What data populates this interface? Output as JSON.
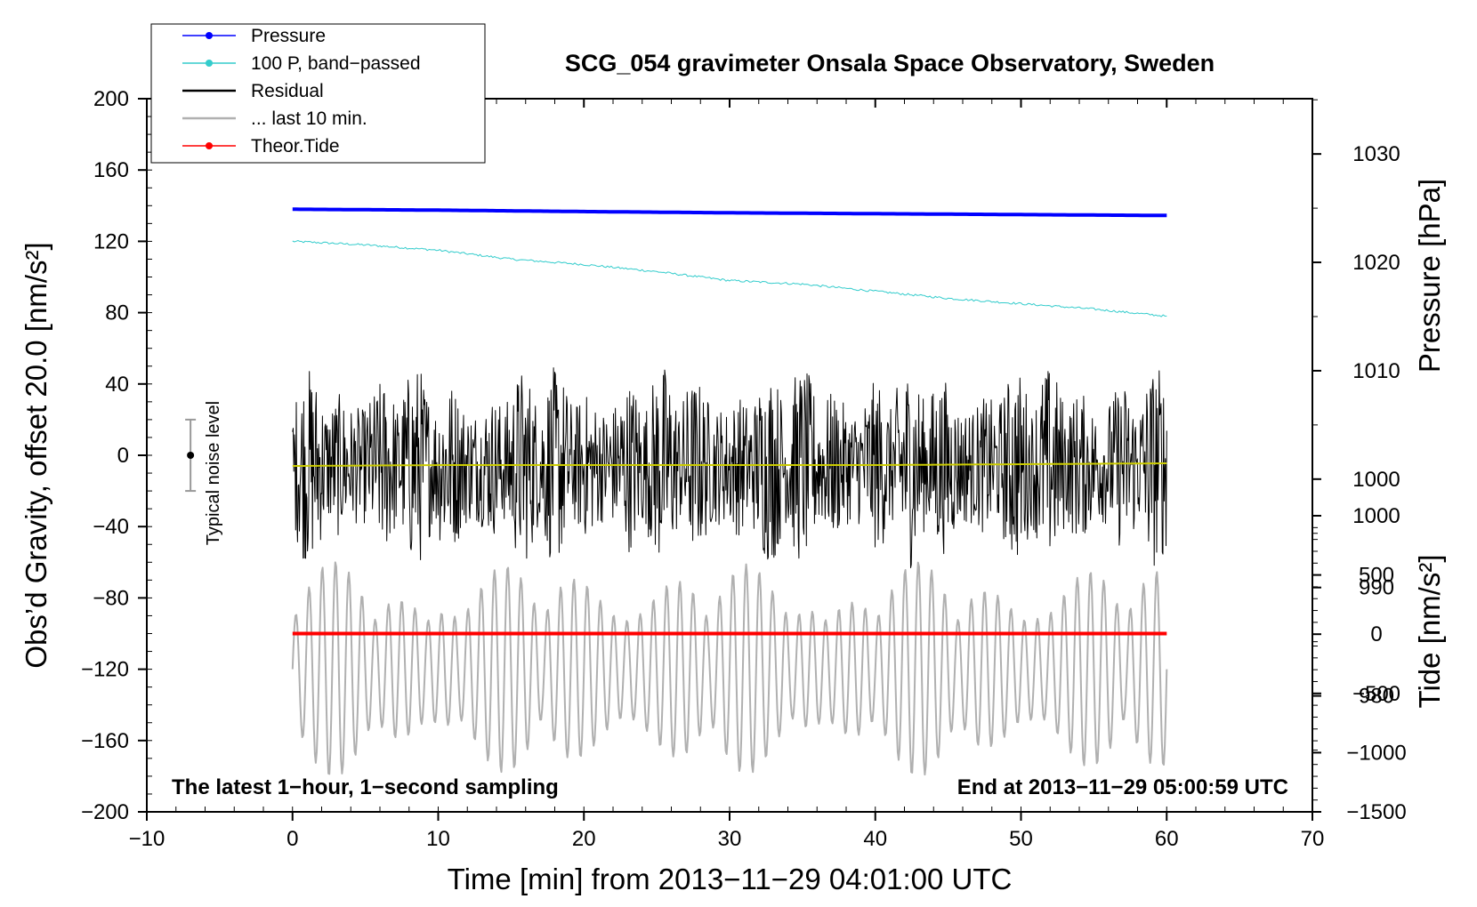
{
  "chart_data": {
    "type": "line",
    "title": "SCG_054 gravimeter Onsala Space Observatory, Sweden",
    "xlabel": "Time [min] from 2013−11−29 04:01:00 UTC",
    "ylabel_left": "Obs’d Gravity, offset 20.0 [nm/s²]",
    "ylabel_right_pressure": "Pressure [hPa]",
    "ylabel_right_tide": "Tide [nm/s²]",
    "xlim": [
      -10,
      70
    ],
    "ylim_left": [
      -200,
      200
    ],
    "pressure_axis_range": [
      969.3,
      1035.1
    ],
    "tide_axis_range": [
      -1500,
      1000
    ],
    "x_ticks": [
      "−10",
      "0",
      "10",
      "20",
      "30",
      "40",
      "50",
      "60",
      "70"
    ],
    "x_tick_values": [
      -10,
      0,
      10,
      20,
      30,
      40,
      50,
      60,
      70
    ],
    "y_left_ticks": [
      "200",
      "160",
      "120",
      "80",
      "40",
      "0",
      "−40",
      "−80",
      "−120",
      "−160",
      "−200"
    ],
    "y_left_tick_values": [
      200,
      160,
      120,
      80,
      40,
      0,
      -40,
      -80,
      -120,
      -160,
      -200
    ],
    "pressure_ticks": [
      "1030",
      "1020",
      "1010",
      "1000",
      "990",
      "980"
    ],
    "pressure_tick_values": [
      1030,
      1020,
      1010,
      1000,
      990,
      980
    ],
    "tide_ticks": [
      "1000",
      "500",
      "0",
      "−500",
      "−1000",
      "−1500"
    ],
    "tide_tick_values": [
      1000,
      500,
      0,
      -500,
      -1000,
      -1500
    ],
    "grid": false,
    "legend_position": "top-left",
    "legend": [
      {
        "label": "Pressure",
        "color": "#0000ff",
        "marker": true
      },
      {
        "label": "100 P, band−passed",
        "color": "#33cccc",
        "marker": true
      },
      {
        "label": "Residual",
        "color": "#000000",
        "marker": false
      },
      {
        "label": "... last 10 min.",
        "color": "#b0b0b0",
        "marker": false
      },
      {
        "label": "Theor.Tide",
        "color": "#ff0000",
        "marker": true
      }
    ],
    "annotations": {
      "bottom_left": "The latest 1−hour, 1−second sampling",
      "bottom_right": "End at 2013−11−29 05:00:59 UTC",
      "noise_label": "Typical noise level"
    },
    "noise_bar": {
      "x": -7,
      "center": 0,
      "half_range": 20
    },
    "series": [
      {
        "name": "Pressure",
        "color": "#0000ff",
        "width": 4,
        "x": [
          0,
          10,
          20,
          30,
          40,
          50,
          60
        ],
        "y": [
          138,
          137.5,
          136.7,
          136,
          135.5,
          135,
          134.5
        ]
      },
      {
        "name": "100 P, band−passed",
        "color": "#33cccc",
        "width": 1,
        "x": [
          0,
          5,
          10,
          15,
          20,
          25,
          30,
          35,
          40,
          45,
          50,
          55,
          60
        ],
        "y": [
          120,
          118,
          115,
          110,
          107,
          103,
          98,
          96,
          92,
          88,
          85,
          82,
          78
        ]
      },
      {
        "name": "Residual",
        "color": "#000000",
        "width": 1,
        "x_range": [
          0,
          60
        ],
        "center": -6,
        "envelope": 58
      },
      {
        "name": "Residual running mean",
        "color": "#cccc00",
        "width": 2,
        "x": [
          0,
          10,
          20,
          30,
          40,
          50,
          60
        ],
        "y": [
          -6,
          -5.5,
          -5.5,
          -5.5,
          -5.5,
          -5,
          -4.5
        ]
      },
      {
        "name": "... last 10 min.",
        "color": "#b0b0b0",
        "width": 2,
        "x_range": [
          0,
          60
        ],
        "center": -120,
        "amplitude": 38
      },
      {
        "name": "Theor.Tide",
        "color": "#ff0000",
        "width": 4,
        "x": [
          0,
          10,
          20,
          30,
          40,
          50,
          60
        ],
        "y": [
          -100,
          -100,
          -100,
          -100,
          -100,
          -100,
          -100
        ]
      }
    ]
  }
}
